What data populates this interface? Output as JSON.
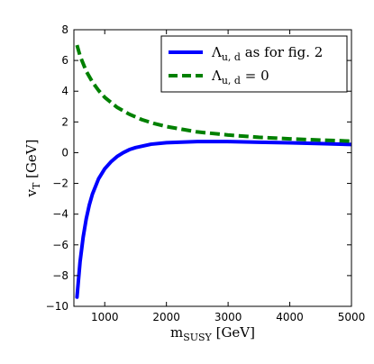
{
  "chart_data": {
    "type": "line",
    "xlabel": {
      "base": "m",
      "sub": "SUSY",
      "unit": " [GeV]"
    },
    "ylabel": {
      "base": "v",
      "sub": "T",
      "unit": " [GeV]"
    },
    "xlim": [
      500,
      5000
    ],
    "ylim": [
      -10,
      8
    ],
    "xticks": [
      1000,
      2000,
      3000,
      4000,
      5000
    ],
    "yticks": [
      -10,
      -8,
      -6,
      -4,
      -2,
      0,
      2,
      4,
      6,
      8
    ],
    "grid": false,
    "legend_position": "top-right",
    "series": [
      {
        "legend": {
          "symbol": "Λ",
          "sub": "u, d",
          "rest": " as for fig. 2"
        },
        "color": "#0000ff",
        "style": "solid",
        "x": [
          550,
          600,
          650,
          700,
          750,
          800,
          900,
          1000,
          1100,
          1200,
          1300,
          1400,
          1500,
          1750,
          2000,
          2500,
          3000,
          3500,
          4000,
          4500,
          5000
        ],
        "y": [
          -9.4,
          -7.1,
          -5.5,
          -4.3,
          -3.4,
          -2.7,
          -1.7,
          -1.05,
          -0.6,
          -0.25,
          0.0,
          0.2,
          0.33,
          0.55,
          0.65,
          0.72,
          0.72,
          0.68,
          0.64,
          0.59,
          0.53
        ]
      },
      {
        "legend": {
          "symbol": "Λ",
          "sub": "u, d",
          "rest": " = 0"
        },
        "color": "#008000",
        "style": "dashed",
        "x": [
          550,
          600,
          700,
          800,
          900,
          1000,
          1200,
          1400,
          1600,
          1800,
          2000,
          2500,
          3000,
          3500,
          4000,
          4500,
          5000
        ],
        "y": [
          7.0,
          6.3,
          5.3,
          4.6,
          4.05,
          3.6,
          2.95,
          2.5,
          2.15,
          1.9,
          1.7,
          1.35,
          1.15,
          1.0,
          0.9,
          0.82,
          0.75
        ]
      }
    ]
  }
}
